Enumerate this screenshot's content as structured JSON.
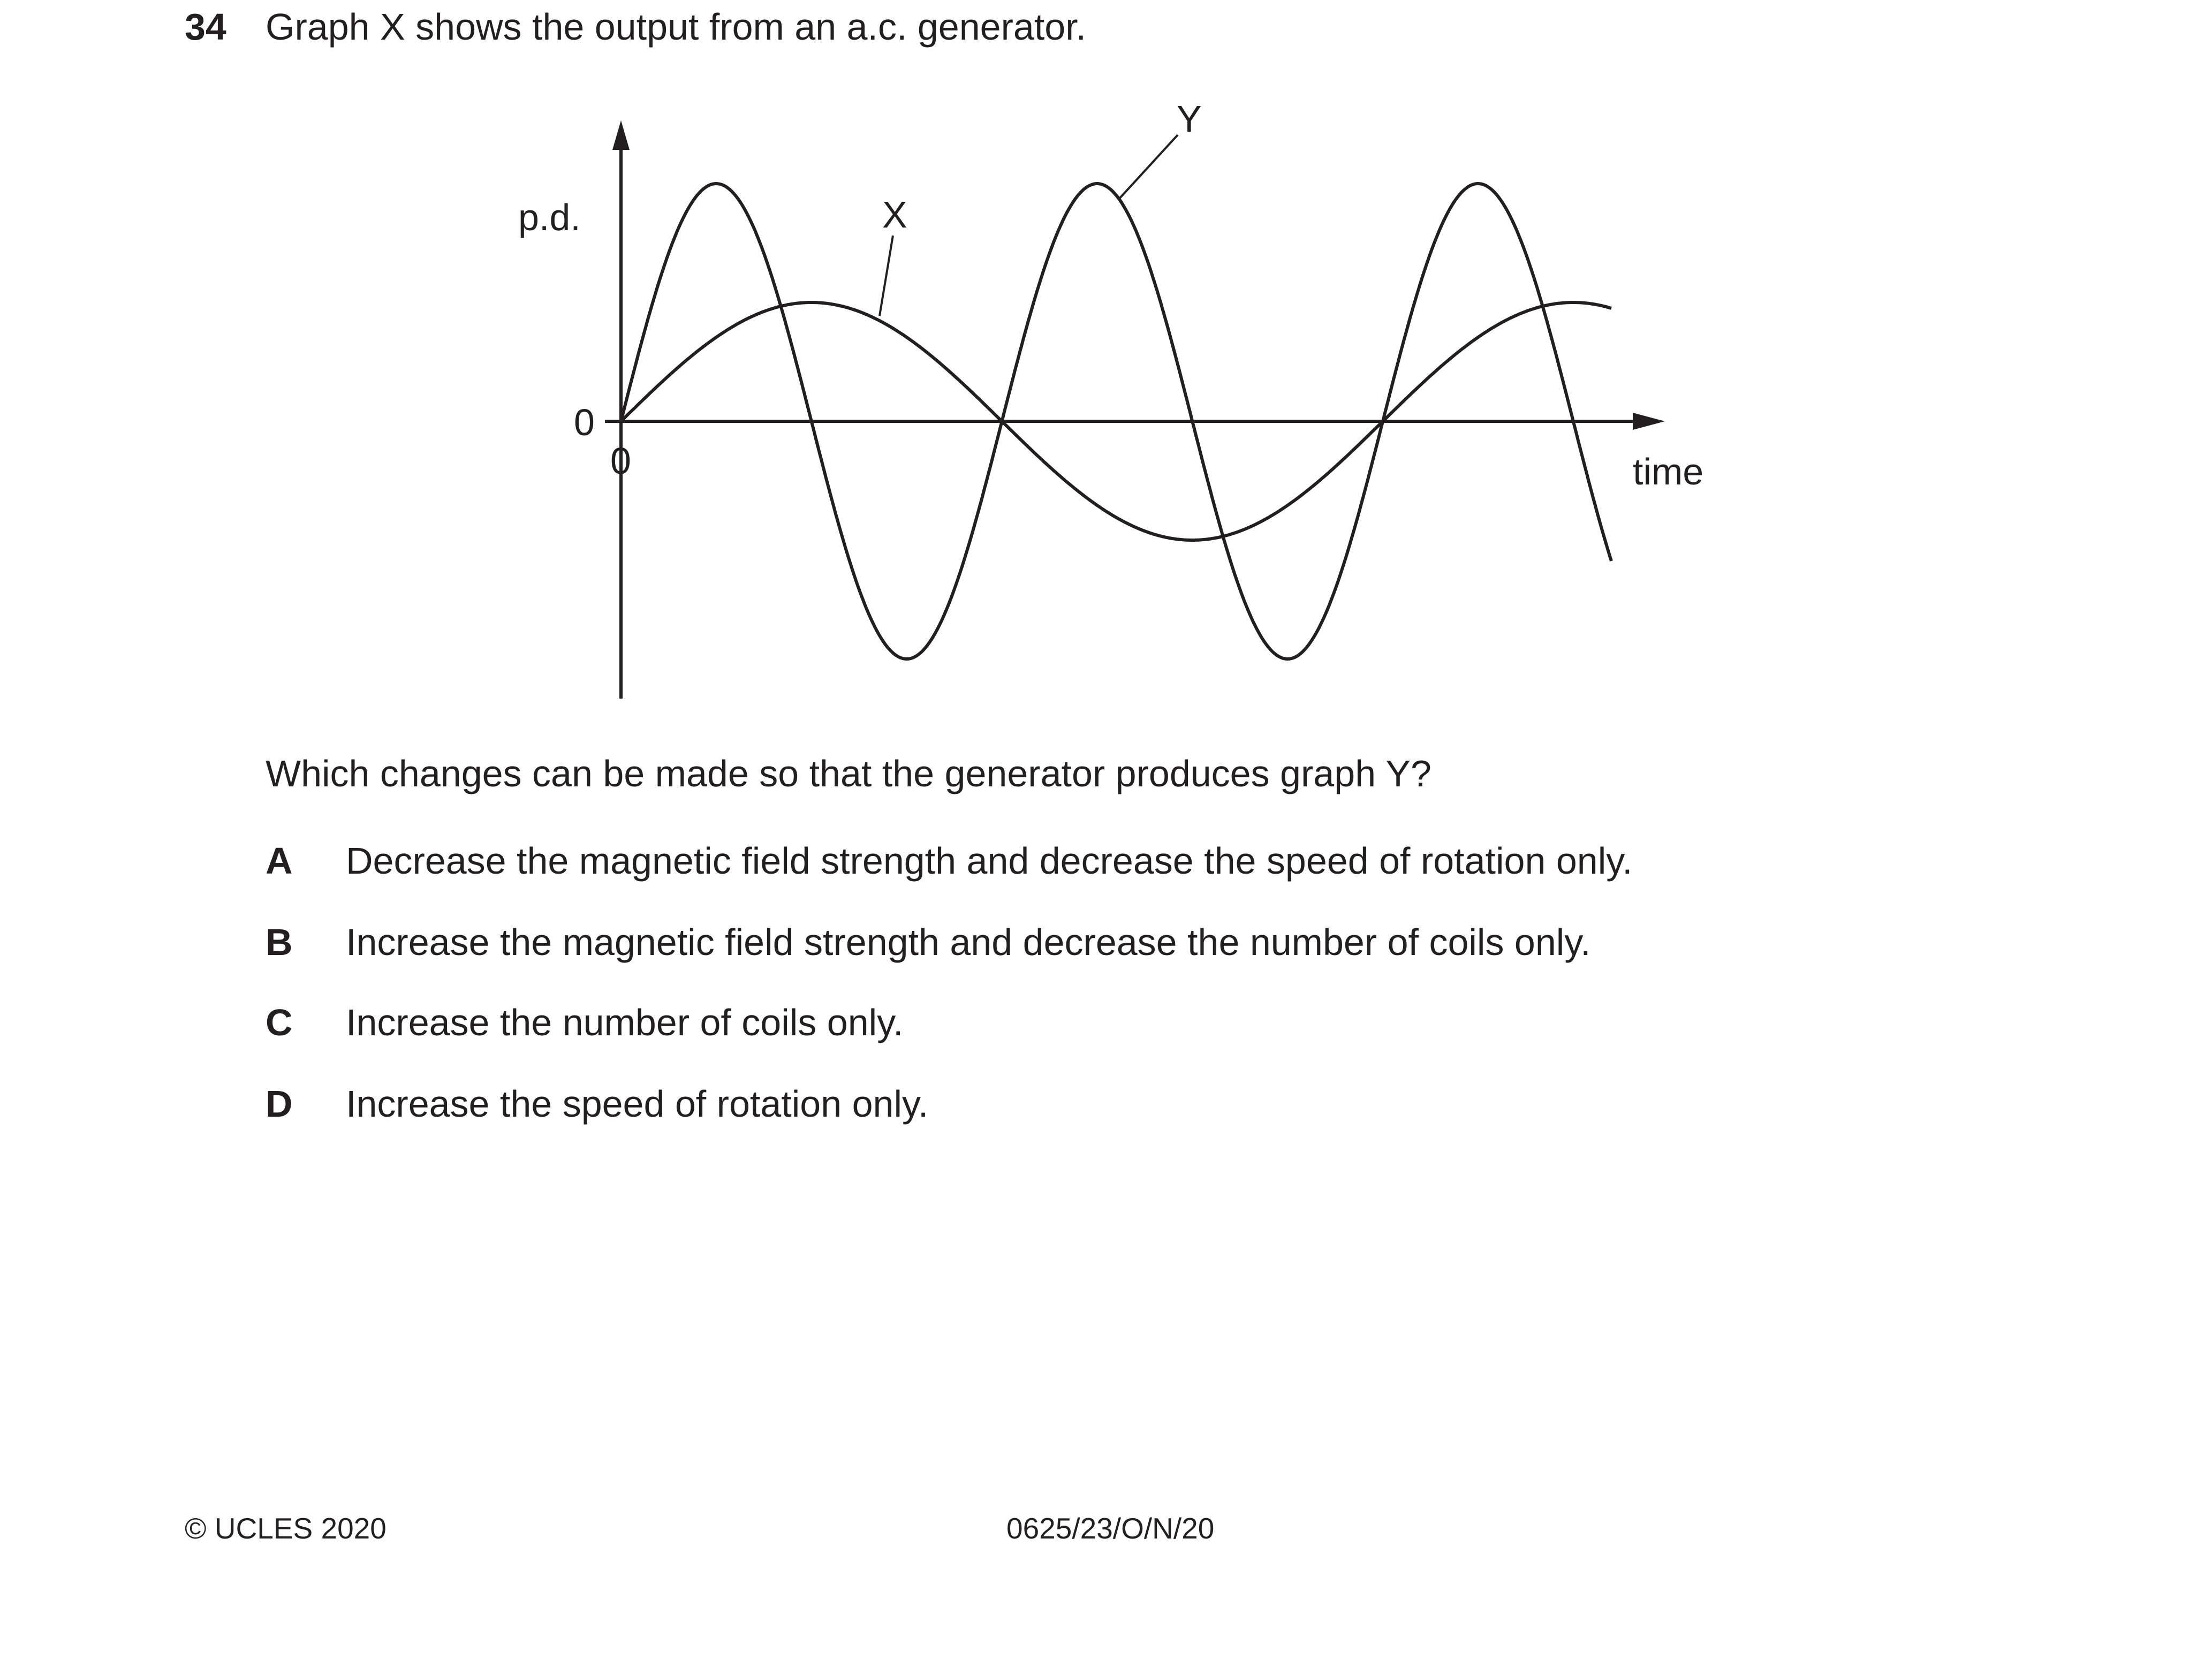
{
  "question": {
    "number": "34",
    "stem": "Graph X shows the output from an a.c. generator.",
    "prompt": "Which changes can be made so that the generator produces graph Y?",
    "options": [
      {
        "letter": "A",
        "text": "Decrease the magnetic field strength and decrease the speed of rotation only."
      },
      {
        "letter": "B",
        "text": "Increase the magnetic field strength and decrease the number of coils only."
      },
      {
        "letter": "C",
        "text": "Increase the number of coils only."
      },
      {
        "letter": "D",
        "text": "Increase the speed of rotation only."
      }
    ]
  },
  "graph": {
    "y_axis_label": "p.d.",
    "x_axis_label": "time",
    "y_origin_label": "0",
    "x_origin_label": "0",
    "curve_labels": {
      "x": "X",
      "y": "Y"
    },
    "curves": [
      {
        "name": "X",
        "amplitude": 1.0,
        "cycles": 1.3
      },
      {
        "name": "Y",
        "amplitude": 2.0,
        "cycles": 2.6
      }
    ]
  },
  "footer": {
    "copyright": "© UCLES 2020",
    "paper_code": "0625/23/O/N/20"
  }
}
